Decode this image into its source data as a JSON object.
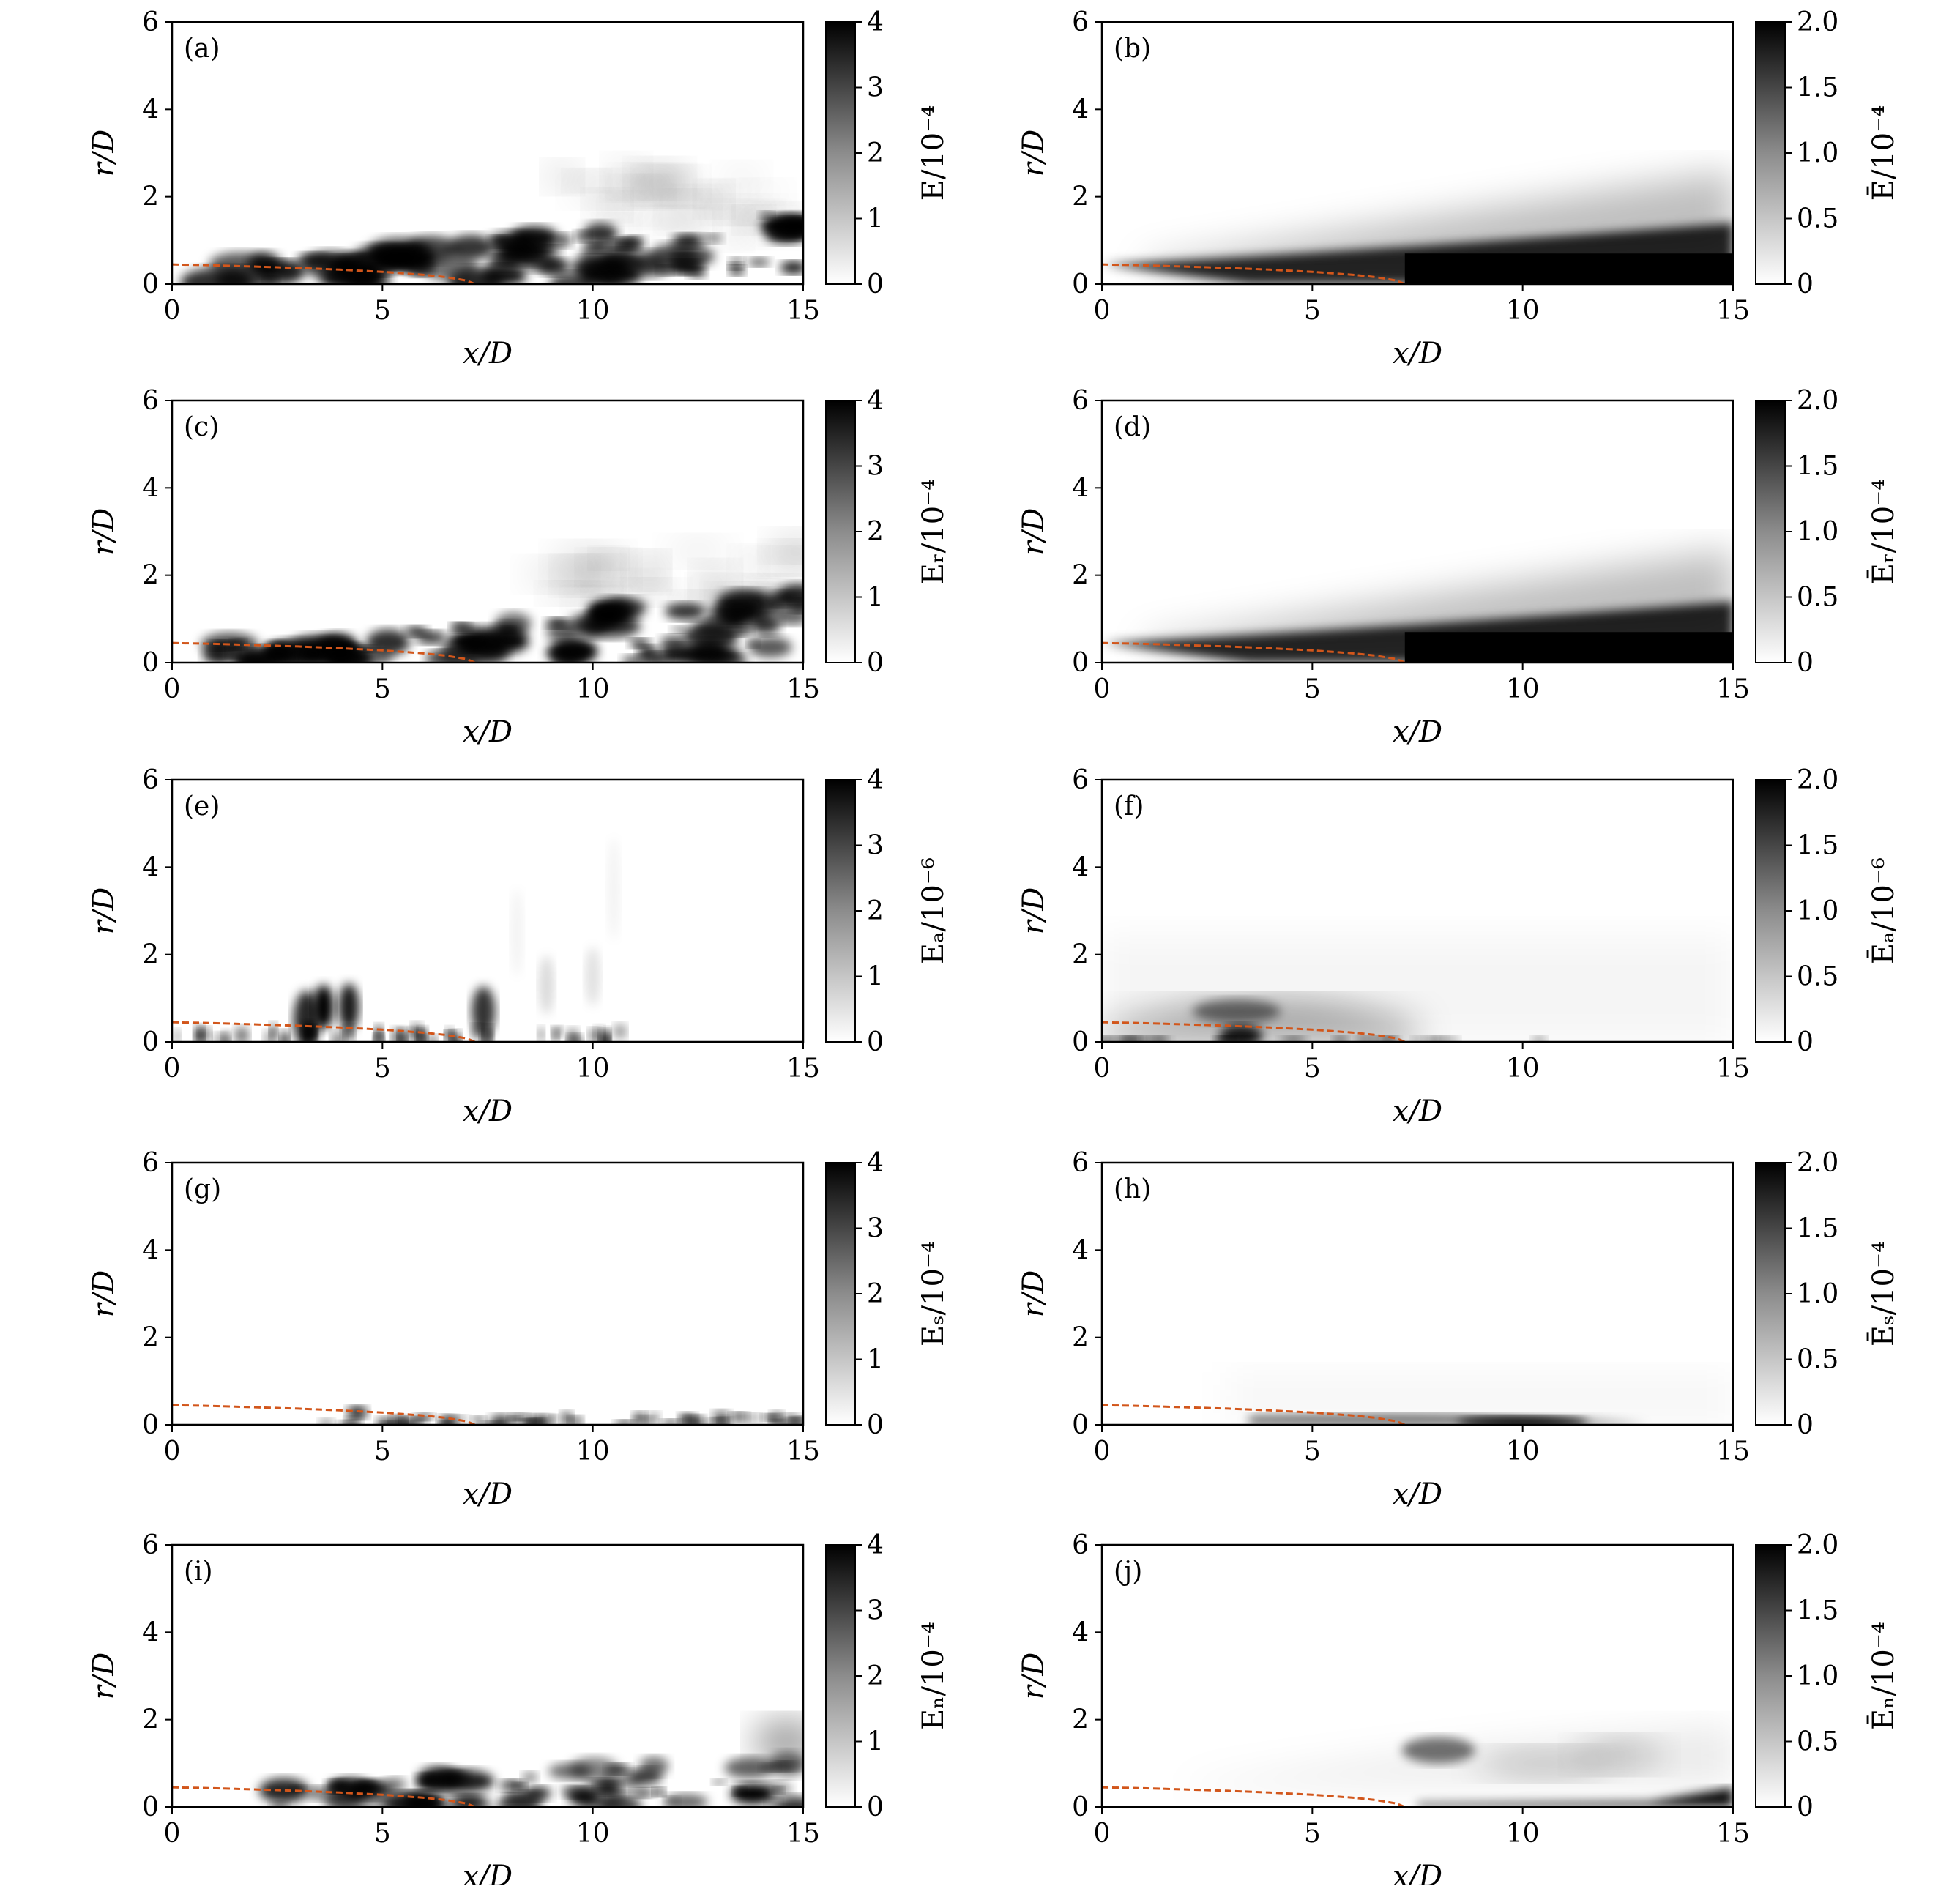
{
  "figure": {
    "panels": [
      {
        "id": "a",
        "label": "(a)",
        "kind": "instantaneous",
        "cbar_label": "E/10⁻⁴"
      },
      {
        "id": "b",
        "label": "(b)",
        "kind": "mean",
        "cbar_label": "Ē/10⁻⁴"
      },
      {
        "id": "c",
        "label": "(c)",
        "kind": "instantaneous",
        "cbar_label": "Eᵣ/10⁻⁴"
      },
      {
        "id": "d",
        "label": "(d)",
        "kind": "mean",
        "cbar_label": "Ēᵣ/10⁻⁴"
      },
      {
        "id": "e",
        "label": "(e)",
        "kind": "instantaneous",
        "cbar_label": "Eₐ/10⁻⁶"
      },
      {
        "id": "f",
        "label": "(f)",
        "kind": "mean",
        "cbar_label": "Ēₐ/10⁻⁶"
      },
      {
        "id": "g",
        "label": "(g)",
        "kind": "instantaneous",
        "cbar_label": "Eₛ/10⁻⁴"
      },
      {
        "id": "h",
        "label": "(h)",
        "kind": "mean",
        "cbar_label": "Ēₛ/10⁻⁴"
      },
      {
        "id": "i",
        "label": "(i)",
        "kind": "instantaneous",
        "cbar_label": "Eₙ/10⁻⁴"
      },
      {
        "id": "j",
        "label": "(j)",
        "kind": "mean",
        "cbar_label": "Ēₙ/10⁻⁴"
      }
    ]
  },
  "chart_data": {
    "type": "heatmap",
    "colormap": "greys (white = 0, black = max)",
    "xlabel": "x/D",
    "ylabel": "r/D",
    "xlim": [
      0,
      15
    ],
    "ylim": [
      0,
      6
    ],
    "xticks": [
      0,
      5,
      10,
      15
    ],
    "yticks": [
      0,
      2,
      4,
      6
    ],
    "cbar_instantaneous": {
      "range": [
        0,
        4
      ],
      "ticks": [
        "0",
        "1",
        "2",
        "3",
        "4"
      ]
    },
    "cbar_mean": {
      "range": [
        0,
        2
      ],
      "ticks": [
        "0",
        "0.5",
        "1.0",
        "1.5",
        "2.0"
      ]
    },
    "potential_core_boundary": {
      "style": "orange dashed",
      "color": "#d2561b",
      "x": [
        0,
        1,
        2,
        3,
        4,
        5,
        6,
        6.5,
        7,
        7.2
      ],
      "y": [
        0.45,
        0.43,
        0.4,
        0.37,
        0.33,
        0.28,
        0.21,
        0.16,
        0.08,
        0.0
      ]
    }
  }
}
